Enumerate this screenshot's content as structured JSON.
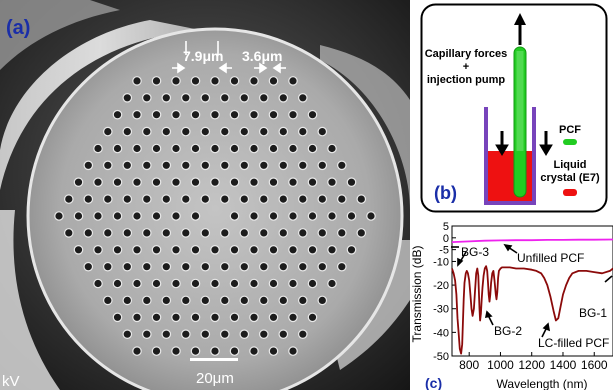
{
  "panel_a": {
    "label": "(a)",
    "pitch_label": "7.9μm",
    "hole_label": "3.6μm",
    "scale_bar_label": "20μm",
    "voltage_fragment": "kV"
  },
  "panel_b": {
    "label": "(b)",
    "forces_text": [
      "Capillary forces",
      "+",
      "injection pump"
    ],
    "legend_pcf": "PCF",
    "legend_lc": [
      "Liquid",
      "crystal (E7)"
    ],
    "colors": {
      "pcf": "#22cc22",
      "liquid": "#ee1111",
      "container": "#7744bb"
    }
  },
  "panel_c": {
    "label": "(c)",
    "annotations": {
      "unfilled": "Unfilled PCF",
      "filled": "LC-filled PCF",
      "bg1": "BG-1",
      "bg2": "BG-2",
      "bg3": "BG-3"
    }
  },
  "chart_data": {
    "type": "line",
    "xlabel": "Wavelength (nm)",
    "ylabel": "Transmission (dB)",
    "xlim": [
      690,
      1720
    ],
    "ylim": [
      -50,
      5
    ],
    "x_ticks": [
      800,
      1000,
      1200,
      1400,
      1600
    ],
    "y_ticks": [
      5,
      0,
      -5,
      -10,
      -20,
      -30,
      -40,
      -50
    ],
    "series": [
      {
        "name": "Unfilled PCF",
        "color": "#ee22ee",
        "x": [
          690,
          800,
          900,
          1000,
          1100,
          1200,
          1300,
          1400,
          1500,
          1600,
          1720
        ],
        "y": [
          -1.8,
          -1.5,
          -1.2,
          -1.1,
          -1.0,
          -1.0,
          -0.9,
          -0.9,
          -0.8,
          -0.8,
          -0.7
        ]
      },
      {
        "name": "LC-filled PCF",
        "color": "#8b0a0a",
        "x": [
          690,
          700,
          710,
          718,
          725,
          732,
          740,
          748,
          755,
          760,
          765,
          770,
          778,
          785,
          792,
          800,
          808,
          815,
          822,
          830,
          838,
          845,
          852,
          858,
          862,
          866,
          870,
          875,
          880,
          885,
          892,
          900,
          908,
          915,
          920,
          925,
          930,
          935,
          940,
          948,
          955,
          962,
          970,
          975,
          980,
          985,
          990,
          1000,
          1010,
          1030,
          1060,
          1100,
          1150,
          1200,
          1230,
          1260,
          1280,
          1300,
          1320,
          1340,
          1355,
          1370,
          1385,
          1400,
          1420,
          1440,
          1460,
          1500,
          1550,
          1600,
          1650,
          1700,
          1720
        ],
        "y": [
          -13,
          -15,
          -18,
          -24,
          -34,
          -40,
          -47,
          -49,
          -45,
          -36,
          -26,
          -19,
          -15,
          -14,
          -15,
          -18,
          -24,
          -30,
          -33,
          -30,
          -22,
          -15,
          -13,
          -16,
          -23,
          -30,
          -35,
          -32,
          -26,
          -21,
          -16,
          -13,
          -12,
          -14,
          -19,
          -24,
          -27,
          -24,
          -19,
          -15,
          -14,
          -18,
          -24,
          -26,
          -23,
          -17,
          -14,
          -13,
          -12.5,
          -12.5,
          -12.5,
          -13,
          -13,
          -13.5,
          -14,
          -15,
          -17,
          -20,
          -25,
          -31,
          -35,
          -34,
          -29,
          -24,
          -20,
          -17,
          -15,
          -14,
          -14,
          -14.5,
          -15,
          -14,
          -13
        ]
      }
    ]
  }
}
